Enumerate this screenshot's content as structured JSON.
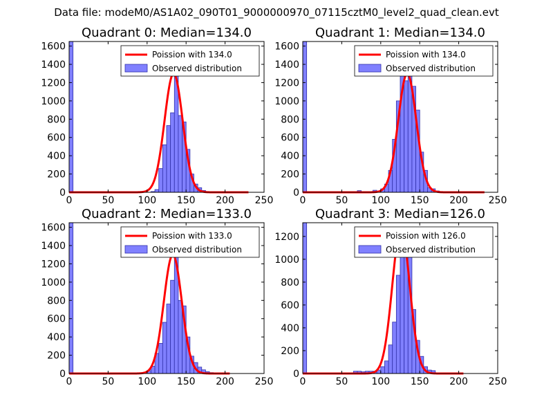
{
  "figure_title": "Data file: modeM0/AS1A02_090T01_9000000970_07115cztM0_level2_quad_clean.evt",
  "colors": {
    "bar_fill": "#8080ff",
    "bar_edge": "#2f2fa8",
    "curve": "#ff0000"
  },
  "chart_data": [
    {
      "type": "bar",
      "title": "Quadrant 0: Median=134.0",
      "legend": [
        "Poission with 134.0",
        "Observed distribution"
      ],
      "legend_position": "top-right",
      "xlim": [
        0,
        250
      ],
      "ylim": [
        0,
        1650
      ],
      "xticks": [
        "0",
        "50",
        "100",
        "150",
        "200",
        "250"
      ],
      "yticks": [
        "0",
        "200",
        "400",
        "600",
        "800",
        "1000",
        "1200",
        "1400",
        "1600"
      ],
      "ytick_values": [
        0,
        200,
        400,
        600,
        800,
        1000,
        1200,
        1400,
        1600
      ],
      "bin_width": 5,
      "bins": [
        [
          0,
          1650
        ],
        [
          105,
          8
        ],
        [
          110,
          30
        ],
        [
          115,
          260
        ],
        [
          120,
          520
        ],
        [
          125,
          730
        ],
        [
          130,
          870
        ],
        [
          135,
          1370
        ],
        [
          140,
          840
        ],
        [
          145,
          770
        ],
        [
          150,
          470
        ],
        [
          155,
          200
        ],
        [
          160,
          90
        ],
        [
          165,
          50
        ],
        [
          170,
          20
        ],
        [
          175,
          8
        ]
      ],
      "poisson_mean": 134.0,
      "poisson_peak": 1300,
      "curve_range": [
        0,
        230
      ]
    },
    {
      "type": "bar",
      "title": "Quadrant 1: Median=134.0",
      "legend": [
        "Poission with 134.0",
        "Observed distribution"
      ],
      "legend_position": "top-right",
      "xlim": [
        0,
        250
      ],
      "ylim": [
        0,
        1650
      ],
      "xticks": [
        "0",
        "50",
        "100",
        "150",
        "200",
        "250"
      ],
      "yticks": [
        "0",
        "200",
        "400",
        "600",
        "800",
        "1000",
        "1200",
        "1400",
        "1600"
      ],
      "ytick_values": [
        0,
        200,
        400,
        600,
        800,
        1000,
        1200,
        1400,
        1600
      ],
      "bin_width": 5,
      "bins": [
        [
          0,
          1650
        ],
        [
          70,
          18
        ],
        [
          90,
          22
        ],
        [
          100,
          38
        ],
        [
          105,
          90
        ],
        [
          110,
          240
        ],
        [
          115,
          580
        ],
        [
          120,
          1000
        ],
        [
          125,
          1360
        ],
        [
          130,
          1220
        ],
        [
          135,
          1320
        ],
        [
          140,
          1160
        ],
        [
          145,
          900
        ],
        [
          150,
          440
        ],
        [
          155,
          240
        ],
        [
          160,
          50
        ],
        [
          165,
          38
        ],
        [
          170,
          15
        ]
      ],
      "poisson_mean": 134.0,
      "poisson_peak": 1300,
      "curve_range": [
        0,
        233
      ]
    },
    {
      "type": "bar",
      "title": "Quadrant 2: Median=133.0",
      "legend": [
        "Poission with 133.0",
        "Observed distribution"
      ],
      "legend_position": "top-right",
      "xlim": [
        0,
        250
      ],
      "ylim": [
        0,
        1650
      ],
      "xticks": [
        "0",
        "50",
        "100",
        "150",
        "200",
        "250"
      ],
      "yticks": [
        "0",
        "200",
        "400",
        "600",
        "800",
        "1000",
        "1200",
        "1400",
        "1600"
      ],
      "ytick_values": [
        0,
        200,
        400,
        600,
        800,
        1000,
        1200,
        1400,
        1600
      ],
      "bin_width": 5,
      "bins": [
        [
          0,
          1650
        ],
        [
          100,
          30
        ],
        [
          105,
          80
        ],
        [
          110,
          220
        ],
        [
          115,
          330
        ],
        [
          120,
          560
        ],
        [
          125,
          760
        ],
        [
          130,
          1020
        ],
        [
          135,
          1460
        ],
        [
          140,
          800
        ],
        [
          145,
          740
        ],
        [
          150,
          400
        ],
        [
          155,
          190
        ],
        [
          160,
          120
        ],
        [
          165,
          70
        ],
        [
          170,
          40
        ],
        [
          175,
          20
        ],
        [
          180,
          10
        ]
      ],
      "poisson_mean": 133.0,
      "poisson_peak": 1300,
      "curve_range": [
        0,
        206
      ]
    },
    {
      "type": "bar",
      "title": "Quadrant 3: Median=126.0",
      "legend": [
        "Poission with 126.0",
        "Observed distribution"
      ],
      "legend_position": "top-right",
      "xlim": [
        0,
        250
      ],
      "ylim": [
        0,
        1320
      ],
      "xticks": [
        "0",
        "50",
        "100",
        "150",
        "200",
        "250"
      ],
      "yticks": [
        "0",
        "200",
        "400",
        "600",
        "800",
        "1000",
        "1200"
      ],
      "ytick_values": [
        0,
        200,
        400,
        600,
        800,
        1000,
        1200
      ],
      "bin_width": 5,
      "bins": [
        [
          0,
          1320
        ],
        [
          65,
          20
        ],
        [
          70,
          20
        ],
        [
          75,
          15
        ],
        [
          80,
          20
        ],
        [
          85,
          20
        ],
        [
          90,
          20
        ],
        [
          95,
          30
        ],
        [
          100,
          60
        ],
        [
          105,
          110
        ],
        [
          110,
          250
        ],
        [
          115,
          450
        ],
        [
          120,
          860
        ],
        [
          125,
          1270
        ],
        [
          130,
          1110
        ],
        [
          135,
          1200
        ],
        [
          140,
          560
        ],
        [
          145,
          290
        ],
        [
          150,
          150
        ],
        [
          155,
          60
        ],
        [
          160,
          30
        ],
        [
          165,
          25
        ]
      ],
      "poisson_mean": 126.0,
      "poisson_peak": 1270,
      "curve_range": [
        0,
        206
      ]
    }
  ]
}
